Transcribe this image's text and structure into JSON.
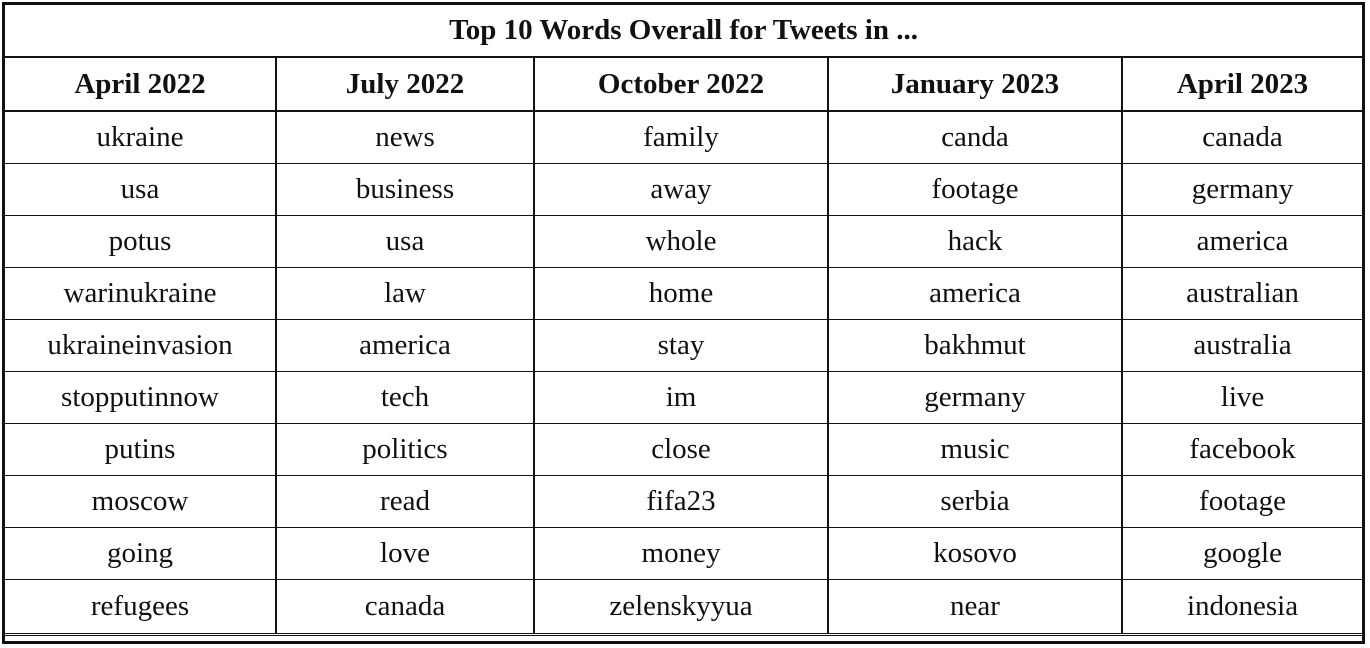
{
  "table": {
    "title": "Top 10 Words Overall for Tweets in ...",
    "columns": [
      "April 2022",
      "July 2022",
      "October 2022",
      "January 2023",
      "April 2023"
    ],
    "rows": [
      [
        "ukraine",
        "news",
        "family",
        "canda",
        "canada"
      ],
      [
        "usa",
        "business",
        "away",
        "footage",
        "germany"
      ],
      [
        "potus",
        "usa",
        "whole",
        "hack",
        "america"
      ],
      [
        "warinukraine",
        "law",
        "home",
        "america",
        "australian"
      ],
      [
        "ukraineinvasion",
        "america",
        "stay",
        "bakhmut",
        "australia"
      ],
      [
        "stopputinnow",
        "tech",
        "im",
        "germany",
        "live"
      ],
      [
        "putins",
        "politics",
        "close",
        "music",
        "facebook"
      ],
      [
        "moscow",
        "read",
        "fifa23",
        "serbia",
        "footage"
      ],
      [
        "going",
        "love",
        "money",
        "kosovo",
        "google"
      ],
      [
        "refugees",
        "canada",
        "zelenskyyua",
        "near",
        "indonesia"
      ]
    ]
  }
}
